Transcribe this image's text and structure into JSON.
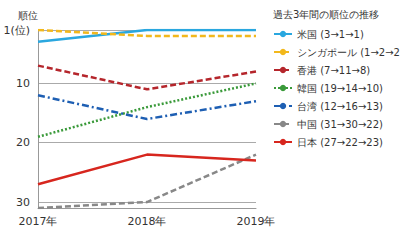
{
  "chart_data": {
    "type": "line",
    "y_label": "順位",
    "annotation": "過去3年間の順位の推移",
    "categories": [
      "2017年",
      "2018年",
      "2019年"
    ],
    "series": [
      {
        "name": "米国 (3→1→1)",
        "color": "#2aa7df",
        "line_style": "solid",
        "values": [
          3,
          1,
          1
        ]
      },
      {
        "name": "シンガポール (1→2→2)",
        "color": "#f2b81c",
        "line_style": "dashed",
        "values": [
          1,
          2,
          2
        ]
      },
      {
        "name": "香港 (7→11→8)",
        "color": "#b5262c",
        "line_style": "dashed",
        "values": [
          7,
          11,
          8
        ]
      },
      {
        "name": "韓国 (19→14→10)",
        "color": "#3a9a3a",
        "line_style": "dotted",
        "values": [
          19,
          14,
          10
        ]
      },
      {
        "name": "台湾 (12→16→13)",
        "color": "#1e5fb3",
        "line_style": "dashdot",
        "values": [
          12,
          16,
          13
        ]
      },
      {
        "name": "中国 (31→30→22)",
        "color": "#888888",
        "line_style": "dashed",
        "values": [
          31,
          30,
          22
        ]
      },
      {
        "name": "日本 (27→22→23)",
        "color": "#d7261e",
        "line_style": "solid",
        "values": [
          27,
          22,
          23
        ]
      }
    ],
    "ylim": [
      1,
      31
    ],
    "yticks": [
      {
        "value": 1,
        "label": "1(位)"
      },
      10,
      20,
      30
    ],
    "inverted": true,
    "grid": true,
    "legend": "right"
  }
}
